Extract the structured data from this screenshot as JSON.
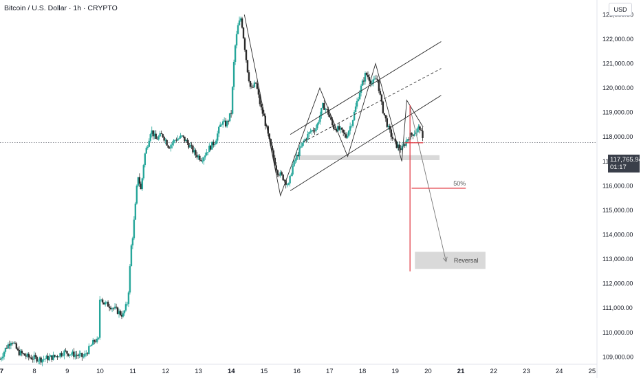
{
  "header": {
    "title": "Bitcoin / U.S. Dollar · 1h · CRYPTO",
    "currency": "USD"
  },
  "price_tag": {
    "price": "117,765.94",
    "countdown": "01:17"
  },
  "colors": {
    "up": "#26a69a",
    "down": "#2b2b2b",
    "annotation": "#e0303a",
    "pattern": "#2b2b2b",
    "zone": "#d9d9d9"
  },
  "annotations": {
    "fifty": "50%",
    "reversal": "Reversal"
  },
  "chart_data": {
    "type": "candlestick",
    "x_ticks": [
      "7",
      "8",
      "9",
      "10",
      "11",
      "12",
      "13",
      "14",
      "15",
      "16",
      "17",
      "18",
      "19",
      "20",
      "21",
      "22",
      "23",
      "24",
      "25"
    ],
    "x_ticks_bold": [
      "7",
      "14",
      "21"
    ],
    "y_ticks": [
      109000,
      110000,
      111000,
      112000,
      113000,
      114000,
      115000,
      116000,
      117000,
      118000,
      119000,
      120000,
      121000,
      122000,
      123000
    ],
    "y_tick_labels": [
      "109,000.00",
      "110,000.00",
      "111,000.00",
      "112,000.00",
      "113,000.00",
      "114,000.00",
      "115,000.00",
      "116,000.00",
      "117,000.00",
      "118,000.00",
      "119,000.00",
      "120,000.00",
      "121,000.00",
      "122,000.00",
      "123,000.00"
    ],
    "ylim": [
      108700,
      123600
    ],
    "xlim": [
      6.95,
      25.15
    ],
    "last_price": 117765.94,
    "price_path": [
      [
        6.95,
        108900
      ],
      [
        7.1,
        109300
      ],
      [
        7.3,
        109700
      ],
      [
        7.5,
        109200
      ],
      [
        7.8,
        109000
      ],
      [
        8.2,
        108900
      ],
      [
        8.6,
        109000
      ],
      [
        8.9,
        109200
      ],
      [
        9.2,
        109100
      ],
      [
        9.5,
        109000
      ],
      [
        9.7,
        109400
      ],
      [
        9.85,
        109700
      ],
      [
        9.95,
        109600
      ],
      [
        10.0,
        111600
      ],
      [
        10.1,
        111200
      ],
      [
        10.3,
        111100
      ],
      [
        10.5,
        110900
      ],
      [
        10.7,
        110700
      ],
      [
        10.85,
        111300
      ],
      [
        10.95,
        113500
      ],
      [
        11.0,
        114000
      ],
      [
        11.1,
        115500
      ],
      [
        11.15,
        116500
      ],
      [
        11.25,
        115800
      ],
      [
        11.35,
        117200
      ],
      [
        11.45,
        117700
      ],
      [
        11.55,
        118300
      ],
      [
        11.7,
        117900
      ],
      [
        11.9,
        118100
      ],
      [
        12.1,
        117600
      ],
      [
        12.3,
        117900
      ],
      [
        12.5,
        118000
      ],
      [
        12.7,
        117700
      ],
      [
        12.9,
        117300
      ],
      [
        13.1,
        117100
      ],
      [
        13.3,
        117500
      ],
      [
        13.5,
        117800
      ],
      [
        13.7,
        118600
      ],
      [
        13.85,
        118500
      ],
      [
        14.0,
        119000
      ],
      [
        14.1,
        121500
      ],
      [
        14.2,
        122500
      ],
      [
        14.3,
        122900
      ],
      [
        14.4,
        121800
      ],
      [
        14.5,
        120700
      ],
      [
        14.6,
        119900
      ],
      [
        14.75,
        120200
      ],
      [
        14.9,
        119200
      ],
      [
        15.0,
        118800
      ],
      [
        15.2,
        117600
      ],
      [
        15.4,
        116600
      ],
      [
        15.6,
        116300
      ],
      [
        15.75,
        116000
      ],
      [
        15.85,
        116700
      ],
      [
        16.0,
        117200
      ],
      [
        16.2,
        117800
      ],
      [
        16.4,
        118200
      ],
      [
        16.6,
        118400
      ],
      [
        16.8,
        119300
      ],
      [
        16.95,
        119000
      ],
      [
        17.1,
        118400
      ],
      [
        17.3,
        118300
      ],
      [
        17.5,
        118000
      ],
      [
        17.7,
        118700
      ],
      [
        17.9,
        119800
      ],
      [
        18.1,
        120600
      ],
      [
        18.3,
        120200
      ],
      [
        18.45,
        120400
      ],
      [
        18.6,
        119200
      ],
      [
        18.8,
        118300
      ],
      [
        19.0,
        117700
      ],
      [
        19.2,
        117500
      ],
      [
        19.4,
        118000
      ],
      [
        19.6,
        118200
      ],
      [
        19.75,
        118400
      ],
      [
        19.85,
        117766
      ]
    ],
    "pattern_lines": {
      "zigzag": [
        [
          14.4,
          123000
        ],
        [
          15.5,
          115600
        ],
        [
          16.7,
          120000
        ],
        [
          17.55,
          117200
        ],
        [
          18.4,
          121000
        ],
        [
          19.2,
          117000
        ],
        [
          19.35,
          119500
        ],
        [
          19.85,
          118400
        ]
      ],
      "channel_upper": [
        [
          15.8,
          118100
        ],
        [
          20.4,
          121900
        ]
      ],
      "channel_mid": [
        [
          16.2,
          117800
        ],
        [
          20.4,
          120800
        ]
      ],
      "channel_lower": [
        [
          15.8,
          115800
        ],
        [
          20.4,
          119700
        ]
      ],
      "projection_arrow": [
        [
          19.45,
          119200
        ],
        [
          20.55,
          112900
        ]
      ],
      "support_zone": {
        "x": [
          15.9,
          20.35
        ],
        "y": [
          117050,
          117250
        ]
      },
      "reversal_zone": {
        "x": [
          19.6,
          21.75
        ],
        "y": [
          112600,
          113300
        ]
      },
      "red_vertical": {
        "x": 19.45,
        "y": [
          112500,
          119300
        ]
      },
      "fifty_line": {
        "x": [
          19.5,
          21.15
        ],
        "y": 115900
      },
      "red_stub": {
        "x": [
          19.3,
          19.85
        ],
        "y": 117760
      }
    }
  }
}
